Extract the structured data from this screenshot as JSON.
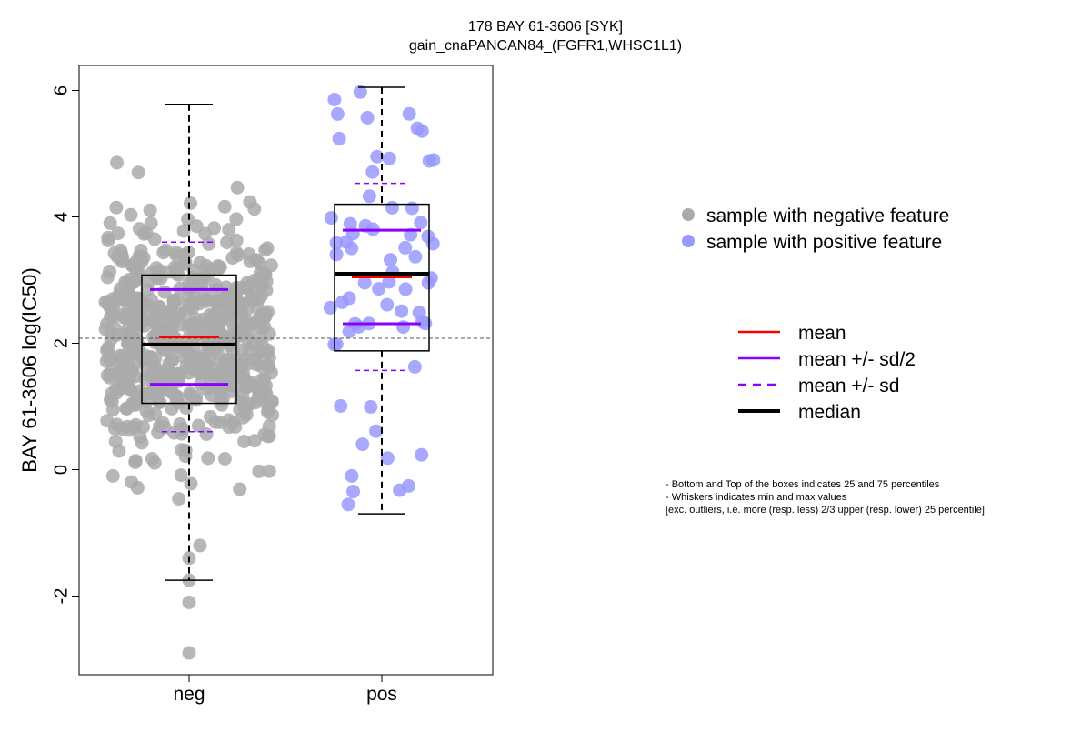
{
  "chart_data": {
    "type": "box",
    "title": "178 BAY 61-3606 [SYK]",
    "subtitle": "gain_cnaPANCAN84_(FGFR1,WHSC1L1)",
    "ylabel": "BAY 61-3606 log(IC50)",
    "xlabel": "",
    "categories": [
      "neg",
      "pos"
    ],
    "yticks": [
      "-2",
      "0",
      "2",
      "4",
      "6"
    ],
    "ylim": [
      -3.2,
      6.4
    ],
    "reference_line": 2.08,
    "groups": [
      {
        "name": "neg",
        "color": "#aaaaaa",
        "q1": 1.05,
        "median": 1.98,
        "q3": 3.08,
        "whisker_low": -1.75,
        "whisker_high": 5.78,
        "mean": 2.1,
        "sd": 1.5,
        "n": 620
      },
      {
        "name": "pos",
        "color": "#9999ff",
        "q1": 1.88,
        "median": 3.1,
        "q3": 4.2,
        "whisker_low": -0.7,
        "whisker_high": 6.05,
        "mean": 3.05,
        "sd": 1.48,
        "n": 66
      }
    ],
    "legend": {
      "points": [
        {
          "label": "sample with negative feature",
          "color": "#aaaaaa"
        },
        {
          "label": "sample with positive feature",
          "color": "#9999ff"
        }
      ],
      "lines": [
        {
          "label": "mean",
          "color": "#ff0000",
          "style": "solid"
        },
        {
          "label": "mean +/- sd/2",
          "color": "#8b00ff",
          "style": "solid"
        },
        {
          "label": "mean +/- sd",
          "color": "#8b00ff",
          "style": "dashed"
        },
        {
          "label": "median",
          "color": "#000000",
          "style": "solid-thick"
        }
      ]
    },
    "notes": [
      "- Bottom and Top of the boxes indicates 25 and 75 percentiles",
      "- Whiskers indicates min and max values",
      "[exc. outliers, i.e. more (resp. less) 2/3 upper (resp. lower) 25 percentile]"
    ]
  }
}
